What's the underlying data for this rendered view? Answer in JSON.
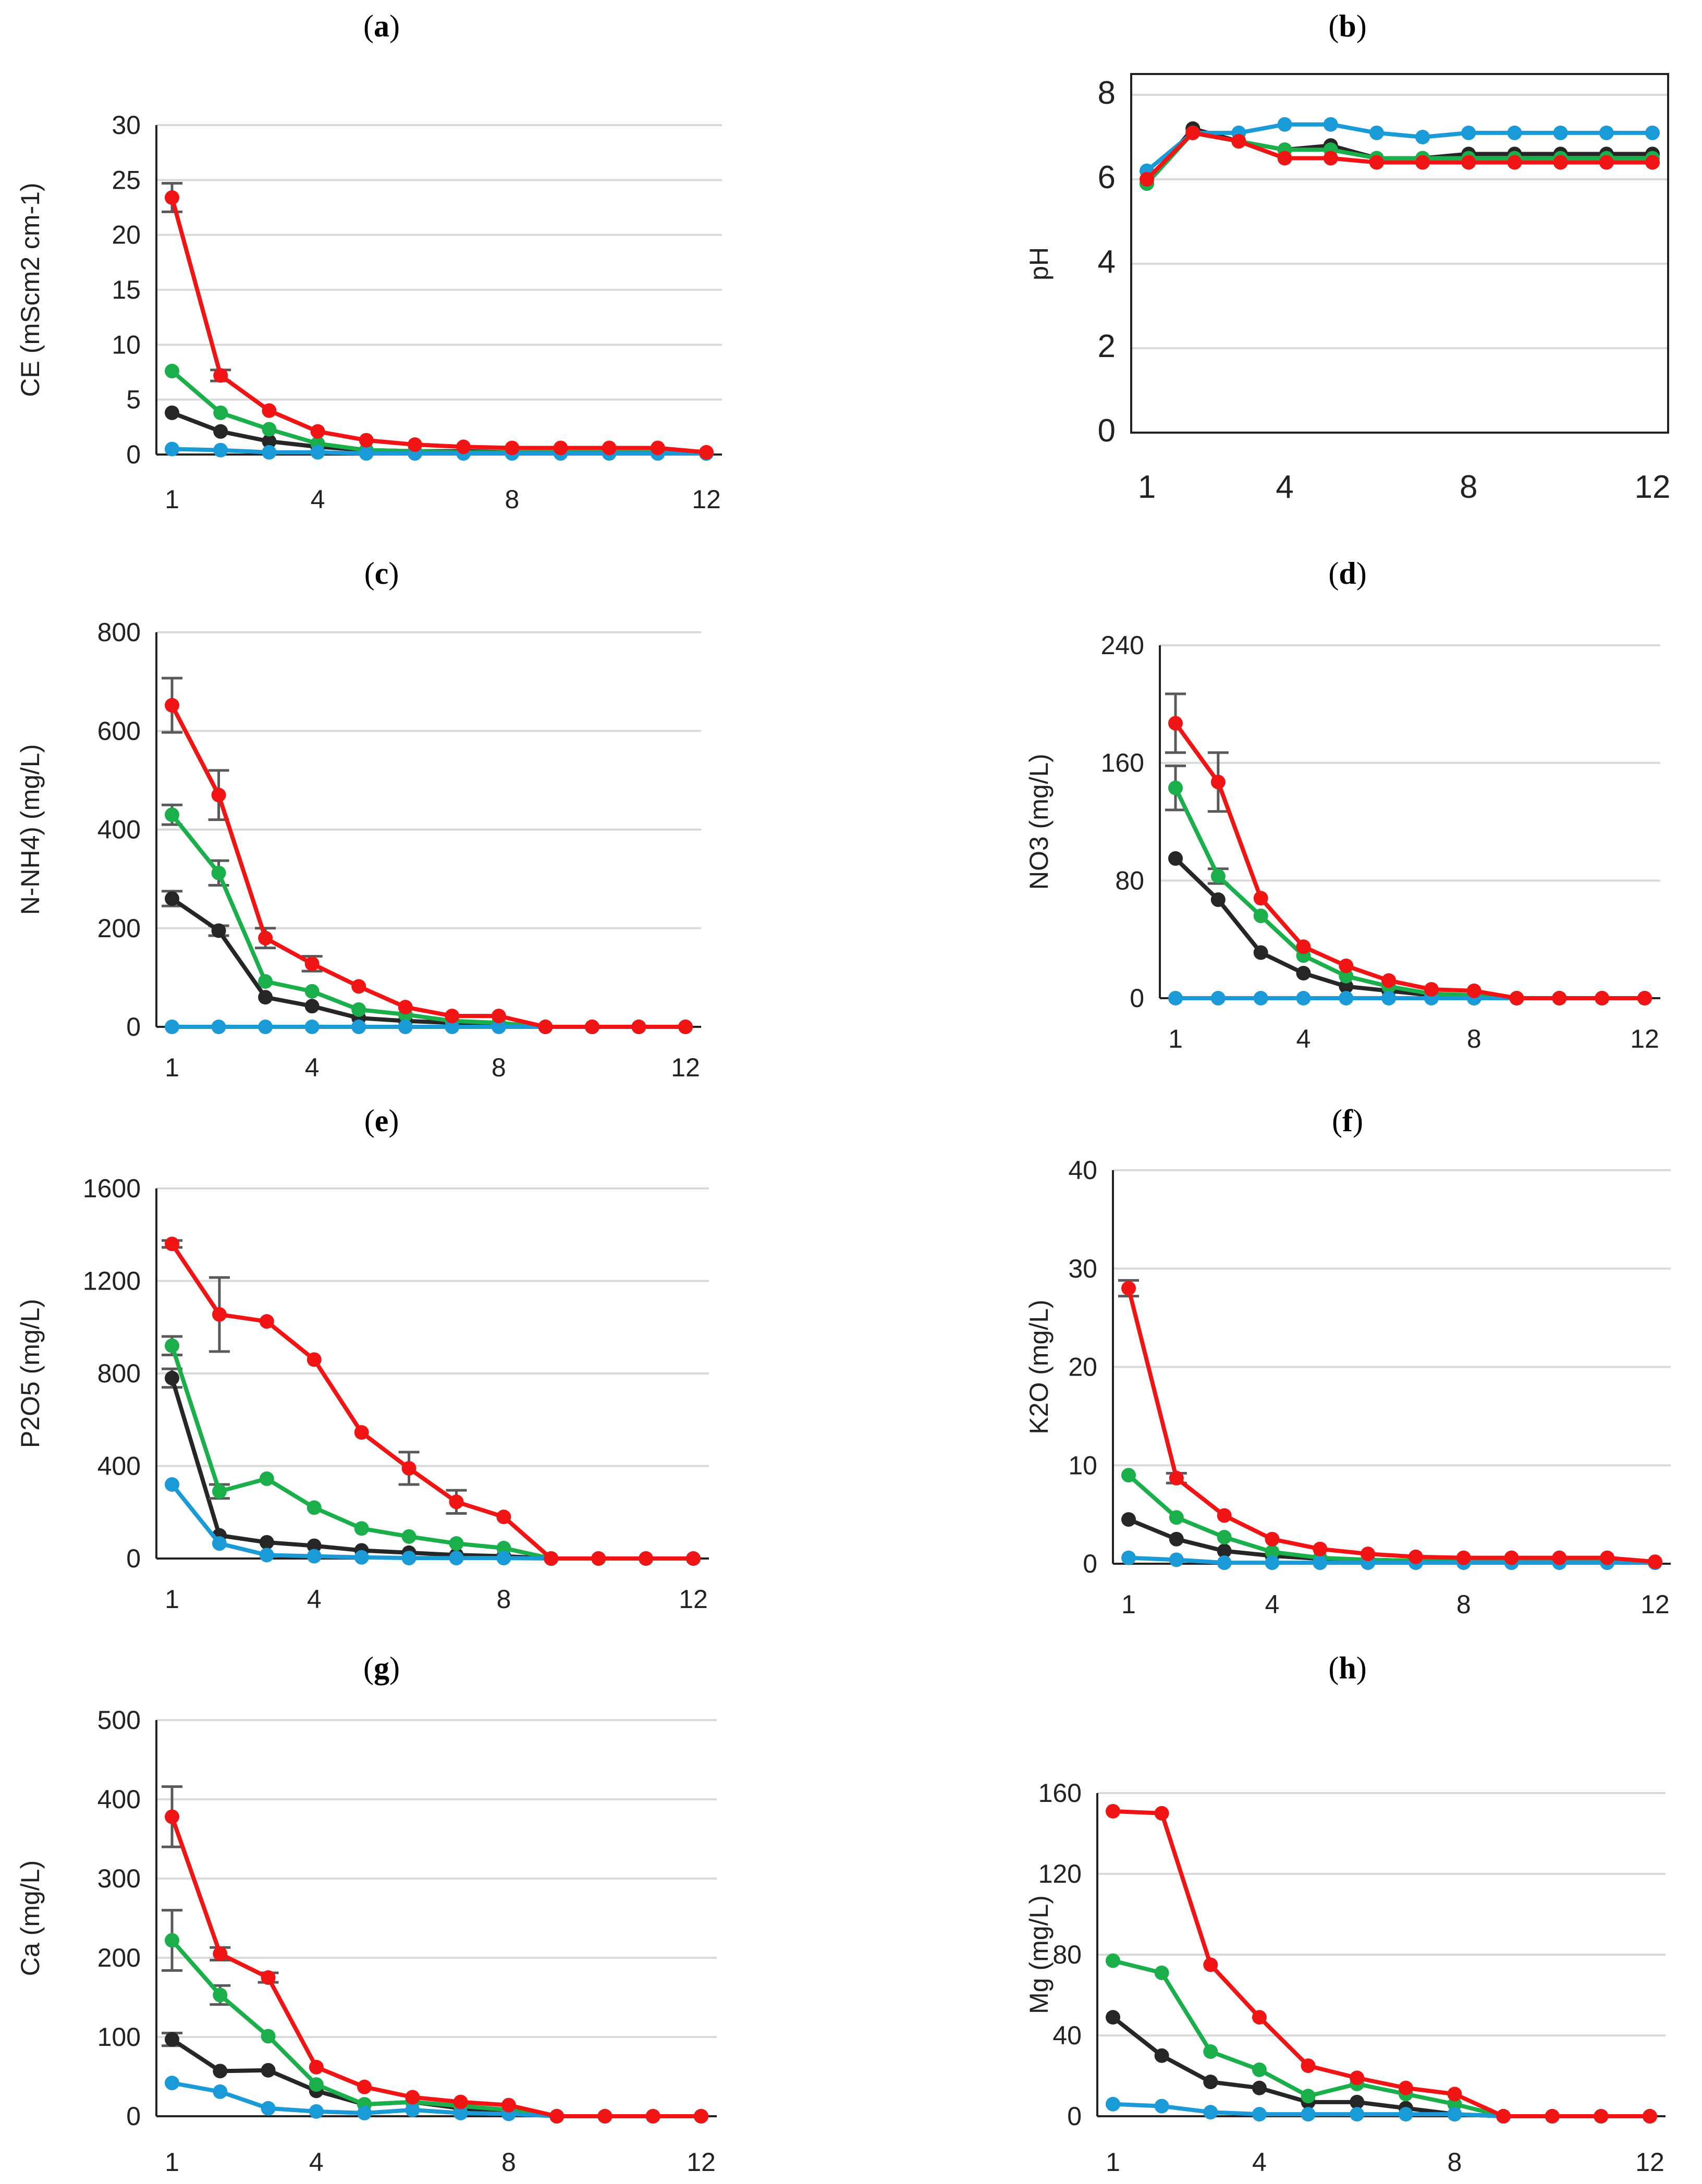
{
  "colors": {
    "black": "#262626",
    "green": "#1aaf4b",
    "blue": "#1a9ad6",
    "red": "#f01414",
    "error_bar": "#595959",
    "grid": "#d9d9d9"
  },
  "chart_data": [
    {
      "id": "a",
      "panel_label": "a",
      "type": "line",
      "title": "",
      "xlabel": "",
      "ylabel": "CE (mScm2 cm-1)",
      "ylim": [
        0,
        30
      ],
      "yticks": [
        "0",
        "5",
        "10",
        "15",
        "20",
        "25",
        "30"
      ],
      "xlim": [
        1,
        12
      ],
      "xticks": [
        "1",
        "4",
        "8",
        "12"
      ],
      "x": [
        1,
        2,
        3,
        4,
        5,
        6,
        7,
        8,
        9,
        10,
        11,
        12
      ],
      "series": [
        {
          "name": "black",
          "values": [
            3.8,
            2.1,
            1.2,
            0.7,
            0.4,
            0.3,
            0.3,
            0.2,
            0.2,
            0.2,
            0.2,
            0.1
          ]
        },
        {
          "name": "green",
          "values": [
            7.6,
            3.8,
            2.3,
            1.0,
            0.4,
            0.3,
            0.2,
            0.2,
            0.2,
            0.2,
            0.2,
            0.1
          ]
        },
        {
          "name": "blue",
          "values": [
            0.5,
            0.4,
            0.2,
            0.2,
            0.1,
            0.1,
            0.1,
            0.1,
            0.1,
            0.1,
            0.1,
            0.1
          ]
        },
        {
          "name": "red",
          "values": [
            23.4,
            7.2,
            4.0,
            2.1,
            1.3,
            0.9,
            0.7,
            0.6,
            0.6,
            0.6,
            0.6,
            0.2
          ],
          "errors": [
            1.3,
            0.5,
            0,
            0,
            0,
            0,
            0,
            0,
            0,
            0,
            0,
            0
          ]
        }
      ]
    },
    {
      "id": "b",
      "panel_label": "b",
      "type": "line",
      "title": "",
      "xlabel": "",
      "ylabel": "pH",
      "ylim": [
        0,
        8
      ],
      "yticks": [
        "0",
        "2",
        "4",
        "6",
        "8"
      ],
      "xlim": [
        1,
        12
      ],
      "xticks": [
        "1",
        "4",
        "8",
        "12"
      ],
      "x": [
        1,
        2,
        3,
        4,
        5,
        6,
        7,
        8,
        9,
        10,
        11,
        12
      ],
      "series": [
        {
          "name": "black",
          "values": [
            5.9,
            7.2,
            6.9,
            6.7,
            6.8,
            6.5,
            6.5,
            6.6,
            6.6,
            6.6,
            6.6,
            6.6
          ]
        },
        {
          "name": "green",
          "values": [
            5.9,
            7.1,
            6.9,
            6.7,
            6.7,
            6.5,
            6.5,
            6.5,
            6.5,
            6.5,
            6.5,
            6.5
          ]
        },
        {
          "name": "blue",
          "values": [
            6.2,
            7.1,
            7.1,
            7.3,
            7.3,
            7.1,
            7.0,
            7.1,
            7.1,
            7.1,
            7.1,
            7.1
          ]
        },
        {
          "name": "red",
          "values": [
            6.0,
            7.1,
            6.9,
            6.5,
            6.5,
            6.4,
            6.4,
            6.4,
            6.4,
            6.4,
            6.4,
            6.4
          ]
        }
      ]
    },
    {
      "id": "c",
      "panel_label": "c",
      "type": "line",
      "title": "",
      "xlabel": "",
      "ylabel": "N-NH4) (mg/L)",
      "ylim": [
        0,
        800
      ],
      "yticks": [
        "0",
        "200",
        "400",
        "600",
        "800"
      ],
      "xlim": [
        1,
        12
      ],
      "xticks": [
        "1",
        "4",
        "8",
        "12"
      ],
      "x": [
        1,
        2,
        3,
        4,
        5,
        6,
        7,
        8,
        9,
        10,
        11,
        12
      ],
      "series": [
        {
          "name": "black",
          "values": [
            260,
            195,
            60,
            42,
            18,
            12,
            8,
            4,
            0,
            0,
            0,
            0
          ],
          "errors": [
            15,
            10,
            0,
            0,
            0,
            0,
            0,
            0,
            0,
            0,
            0,
            0
          ]
        },
        {
          "name": "green",
          "values": [
            430,
            312,
            92,
            72,
            35,
            25,
            12,
            8,
            0,
            0,
            0,
            0
          ],
          "errors": [
            20,
            25,
            0,
            0,
            0,
            0,
            0,
            0,
            0,
            0,
            0,
            0
          ]
        },
        {
          "name": "blue",
          "values": [
            0,
            0,
            0,
            0,
            0,
            0,
            0,
            0,
            0,
            0,
            0,
            0
          ]
        },
        {
          "name": "red",
          "values": [
            652,
            470,
            180,
            128,
            82,
            40,
            22,
            22,
            0,
            0,
            0,
            0
          ],
          "errors": [
            55,
            50,
            20,
            15,
            0,
            0,
            0,
            0,
            0,
            0,
            0,
            0
          ]
        }
      ]
    },
    {
      "id": "d",
      "panel_label": "d",
      "type": "line",
      "title": "",
      "xlabel": "",
      "ylabel": "NO3  (mg/L)",
      "ylim": [
        0,
        240
      ],
      "yticks": [
        "0",
        "80",
        "160",
        "240"
      ],
      "xlim": [
        1,
        12
      ],
      "xticks": [
        "1",
        "4",
        "8",
        "12"
      ],
      "x": [
        1,
        2,
        3,
        4,
        5,
        6,
        7,
        8,
        9,
        10,
        11,
        12
      ],
      "series": [
        {
          "name": "black",
          "values": [
            95,
            67,
            31,
            17,
            8,
            5,
            2,
            0,
            0,
            0,
            0,
            0
          ]
        },
        {
          "name": "green",
          "values": [
            143,
            83,
            56,
            29,
            15,
            8,
            3,
            2,
            0,
            0,
            0,
            0
          ],
          "errors": [
            15,
            5,
            0,
            0,
            0,
            0,
            0,
            0,
            0,
            0,
            0,
            0
          ]
        },
        {
          "name": "blue",
          "values": [
            0,
            0,
            0,
            0,
            0,
            0,
            0,
            0,
            0,
            0,
            0,
            0
          ]
        },
        {
          "name": "red",
          "values": [
            187,
            147,
            68,
            35,
            22,
            12,
            6,
            5,
            0,
            0,
            0,
            0
          ],
          "errors": [
            20,
            20,
            0,
            0,
            0,
            0,
            0,
            0,
            0,
            0,
            0,
            0
          ]
        }
      ]
    },
    {
      "id": "e",
      "panel_label": "e",
      "type": "line",
      "title": "",
      "xlabel": "",
      "ylabel": "P2O5  (mg/L)",
      "ylim": [
        0,
        1600
      ],
      "yticks": [
        "0",
        "400",
        "800",
        "1200",
        "1600"
      ],
      "xlim": [
        1,
        12
      ],
      "xticks": [
        "1",
        "4",
        "8",
        "12"
      ],
      "x": [
        1,
        2,
        3,
        4,
        5,
        6,
        7,
        8,
        9,
        10,
        11,
        12
      ],
      "series": [
        {
          "name": "black",
          "values": [
            780,
            100,
            70,
            55,
            35,
            25,
            15,
            10,
            0,
            0,
            0,
            0
          ],
          "errors": [
            40,
            0,
            0,
            0,
            0,
            0,
            0,
            0,
            0,
            0,
            0,
            0
          ]
        },
        {
          "name": "green",
          "values": [
            920,
            290,
            345,
            220,
            130,
            95,
            65,
            45,
            0,
            0,
            0,
            0
          ],
          "errors": [
            40,
            30,
            0,
            0,
            0,
            0,
            0,
            0,
            0,
            0,
            0,
            0
          ]
        },
        {
          "name": "blue",
          "values": [
            320,
            65,
            15,
            10,
            5,
            2,
            2,
            2,
            0,
            0,
            0,
            0
          ]
        },
        {
          "name": "red",
          "values": [
            1360,
            1055,
            1025,
            860,
            545,
            390,
            245,
            180,
            0,
            0,
            0,
            0
          ],
          "errors": [
            15,
            160,
            0,
            0,
            0,
            70,
            50,
            0,
            0,
            0,
            0,
            0
          ]
        }
      ]
    },
    {
      "id": "f",
      "panel_label": "f",
      "type": "line",
      "title": "",
      "xlabel": "",
      "ylabel": "K2O  (mg/L)",
      "ylim": [
        0,
        40
      ],
      "yticks": [
        "0",
        "10",
        "20",
        "30",
        "40"
      ],
      "xlim": [
        1,
        12
      ],
      "xticks": [
        "1",
        "4",
        "8",
        "12"
      ],
      "x": [
        1,
        2,
        3,
        4,
        5,
        6,
        7,
        8,
        9,
        10,
        11,
        12
      ],
      "series": [
        {
          "name": "black",
          "values": [
            4.5,
            2.5,
            1.3,
            0.8,
            0.5,
            0.4,
            0.3,
            0.3,
            0.2,
            0.2,
            0.2,
            0.1
          ]
        },
        {
          "name": "green",
          "values": [
            9.0,
            4.7,
            2.7,
            1.2,
            0.6,
            0.4,
            0.3,
            0.3,
            0.3,
            0.3,
            0.3,
            0.1
          ]
        },
        {
          "name": "blue",
          "values": [
            0.6,
            0.4,
            0.1,
            0.1,
            0.1,
            0.1,
            0.1,
            0.1,
            0.1,
            0.1,
            0.1,
            0.1
          ]
        },
        {
          "name": "red",
          "values": [
            28.0,
            8.7,
            4.9,
            2.5,
            1.5,
            1.0,
            0.7,
            0.6,
            0.6,
            0.6,
            0.6,
            0.2
          ],
          "errors": [
            0.8,
            0.5,
            0,
            0,
            0,
            0,
            0,
            0,
            0,
            0,
            0,
            0
          ]
        }
      ]
    },
    {
      "id": "g",
      "panel_label": "g",
      "type": "line",
      "title": "",
      "xlabel": "",
      "ylabel": "Ca  (mg/L)",
      "ylim": [
        0,
        500
      ],
      "yticks": [
        "0",
        "100",
        "200",
        "300",
        "400",
        "500"
      ],
      "xlim": [
        1,
        12
      ],
      "xticks": [
        "1",
        "4",
        "8",
        "12"
      ],
      "x": [
        1,
        2,
        3,
        4,
        5,
        6,
        7,
        8,
        9,
        10,
        11,
        12
      ],
      "series": [
        {
          "name": "black",
          "values": [
            97,
            57,
            58,
            32,
            15,
            18,
            10,
            5,
            0,
            0,
            0,
            0
          ],
          "errors": [
            8,
            0,
            0,
            0,
            0,
            0,
            0,
            0,
            0,
            0,
            0,
            0
          ]
        },
        {
          "name": "green",
          "values": [
            222,
            153,
            101,
            40,
            15,
            18,
            13,
            8,
            0,
            0,
            0,
            0
          ],
          "errors": [
            38,
            12,
            0,
            0,
            0,
            0,
            0,
            0,
            0,
            0,
            0,
            0
          ]
        },
        {
          "name": "blue",
          "values": [
            42,
            31,
            10,
            6,
            4,
            8,
            4,
            3,
            0,
            0,
            0,
            0
          ]
        },
        {
          "name": "red",
          "values": [
            378,
            205,
            175,
            62,
            37,
            24,
            18,
            14,
            0,
            0,
            0,
            0
          ],
          "errors": [
            38,
            8,
            6,
            0,
            0,
            0,
            0,
            0,
            0,
            0,
            0,
            0
          ]
        }
      ]
    },
    {
      "id": "h",
      "panel_label": "h",
      "type": "line",
      "title": "",
      "xlabel": "",
      "ylabel": "Mg  (mg/L)",
      "ylim": [
        0,
        160
      ],
      "yticks": [
        "0",
        "40",
        "80",
        "120",
        "160"
      ],
      "xlim": [
        1,
        12
      ],
      "xticks": [
        "1",
        "4",
        "8",
        "12"
      ],
      "x": [
        1,
        2,
        3,
        4,
        5,
        6,
        7,
        8,
        9,
        10,
        11,
        12
      ],
      "series": [
        {
          "name": "black",
          "values": [
            49,
            30,
            17,
            14,
            7,
            7,
            4,
            1,
            0,
            0,
            0,
            0
          ]
        },
        {
          "name": "green",
          "values": [
            77,
            71,
            32,
            23,
            10,
            16,
            11,
            6,
            0,
            0,
            0,
            0
          ]
        },
        {
          "name": "blue",
          "values": [
            6,
            5,
            2,
            1,
            1,
            1,
            1,
            1,
            0,
            0,
            0,
            0
          ]
        },
        {
          "name": "red",
          "values": [
            151,
            150,
            75,
            49,
            25,
            19,
            14,
            11,
            0,
            0,
            0,
            0
          ]
        }
      ]
    }
  ]
}
